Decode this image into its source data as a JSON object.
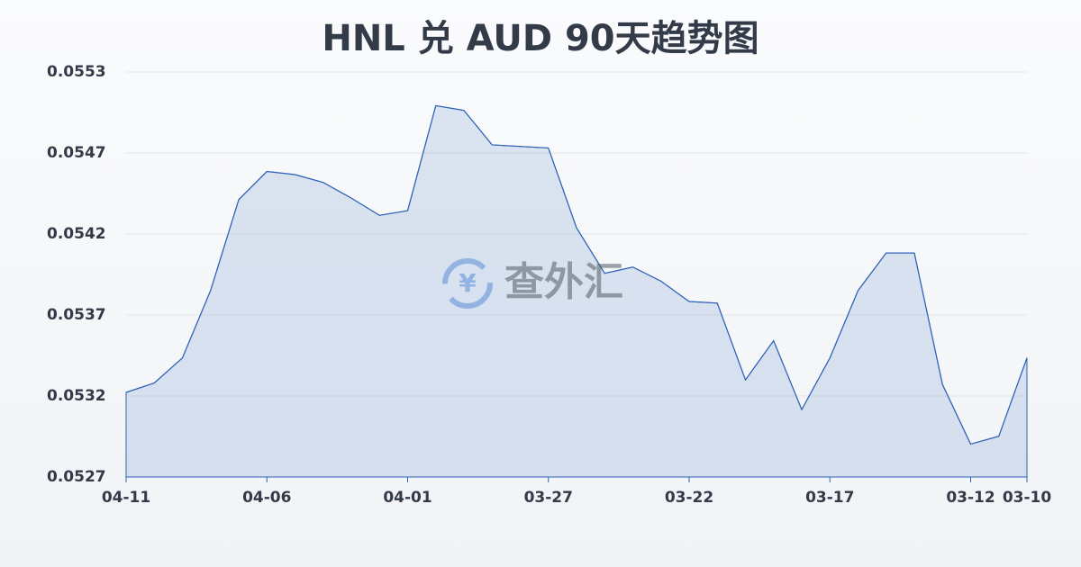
{
  "chart_data": {
    "type": "area",
    "title": "HNL 兑 AUD 90天趋势图",
    "watermark": "查外汇",
    "categories": [
      "04-11",
      null,
      null,
      null,
      null,
      "04-06",
      null,
      null,
      null,
      null,
      "04-01",
      null,
      null,
      null,
      null,
      "03-27",
      null,
      null,
      null,
      null,
      "03-22",
      null,
      null,
      null,
      null,
      "03-17",
      null,
      null,
      null,
      null,
      "03-12",
      null,
      "03-10"
    ],
    "series": [
      {
        "name": "HNL/AUD",
        "color": "#2f62b8",
        "values": [
          0.05321,
          0.05327,
          0.05343,
          0.05386,
          0.05444,
          0.05462,
          0.0546,
          0.05455,
          0.05445,
          0.05434,
          0.05437,
          0.05504,
          0.05501,
          0.05479,
          0.05478,
          0.05477,
          0.05426,
          0.05397,
          0.05401,
          0.05392,
          0.05379,
          0.05378,
          0.05329,
          0.05354,
          0.0531,
          0.05343,
          0.05386,
          0.0541,
          0.0541,
          0.05326,
          0.05288,
          0.05293,
          0.05343
        ]
      }
    ],
    "ylim": [
      0.05267,
      0.055255
    ],
    "yticks": [
      {
        "value": 0.05267,
        "label": "0.0527"
      },
      {
        "value": 0.053187,
        "label": "0.0532"
      },
      {
        "value": 0.053704,
        "label": "0.0537"
      },
      {
        "value": 0.054221,
        "label": "0.0542"
      },
      {
        "value": 0.054738,
        "label": "0.0547"
      },
      {
        "value": 0.055255,
        "label": "0.0553"
      }
    ],
    "grid": true
  }
}
